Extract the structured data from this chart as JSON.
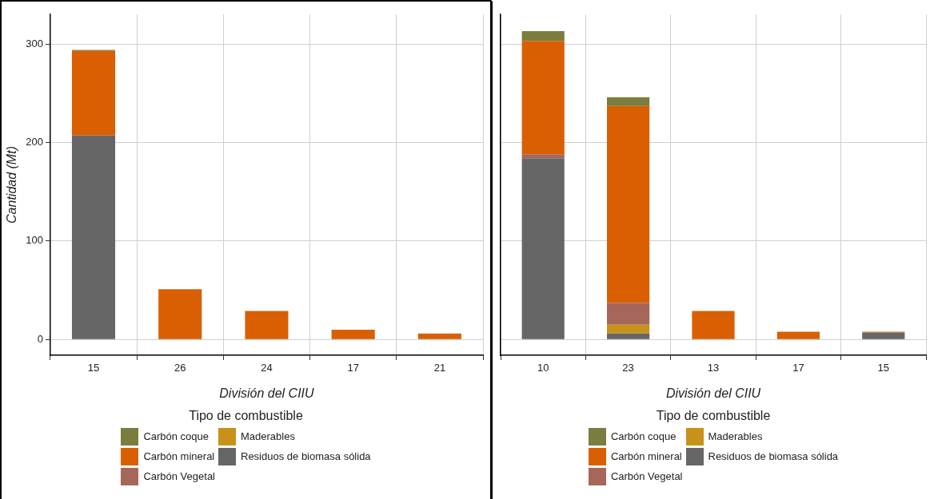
{
  "chart_data": [
    {
      "type": "bar",
      "stacked": true,
      "categories": [
        "15",
        "26",
        "24",
        "17",
        "21"
      ],
      "xlabel": "División del CIIU",
      "ylabel": "Cantidad (Mt)",
      "legend_title": "Tipo de combustible",
      "legend": "bottom",
      "grid": true,
      "ylim": [
        -16,
        330
      ],
      "yticks": [
        0,
        100,
        200,
        300
      ],
      "series": [
        {
          "name": "Residuos de biomasa sólida",
          "color": "#666666",
          "values": [
            207,
            null,
            null,
            null,
            null
          ]
        },
        {
          "name": "Maderables",
          "color": "#c8921a",
          "values": [
            null,
            null,
            null,
            null,
            null
          ]
        },
        {
          "name": "Carbón Vegetal",
          "color": "#a6665a",
          "values": [
            null,
            null,
            null,
            null,
            null
          ]
        },
        {
          "name": "Carbón mineral",
          "color": "#d95f02",
          "values": [
            86,
            51,
            29,
            10,
            6
          ]
        },
        {
          "name": "Carbón coque",
          "color": "#7a7d3e",
          "values": [
            1,
            null,
            null,
            null,
            null
          ]
        }
      ]
    },
    {
      "type": "bar",
      "stacked": true,
      "categories": [
        "10",
        "23",
        "13",
        "17",
        "15"
      ],
      "xlabel": "División del CIIU",
      "legend_title": "Tipo de combustible",
      "legend": "bottom",
      "grid": true,
      "ylim": [
        -16,
        330
      ],
      "yticks": [
        0,
        100,
        200,
        300
      ],
      "tick_labels": "x",
      "series": [
        {
          "name": "Residuos de biomasa sólida",
          "color": "#666666",
          "values": [
            184,
            6,
            null,
            null,
            7
          ]
        },
        {
          "name": "Maderables",
          "color": "#c8921a",
          "values": [
            null,
            9,
            null,
            null,
            null
          ]
        },
        {
          "name": "Carbón Vegetal",
          "color": "#a6665a",
          "values": [
            4,
            22,
            null,
            null,
            null
          ]
        },
        {
          "name": "Carbón mineral",
          "color": "#d95f02",
          "values": [
            115,
            200,
            29,
            8,
            1
          ]
        },
        {
          "name": "Carbón coque",
          "color": "#7a7d3e",
          "values": [
            10,
            9,
            null,
            null,
            null
          ]
        }
      ]
    }
  ]
}
